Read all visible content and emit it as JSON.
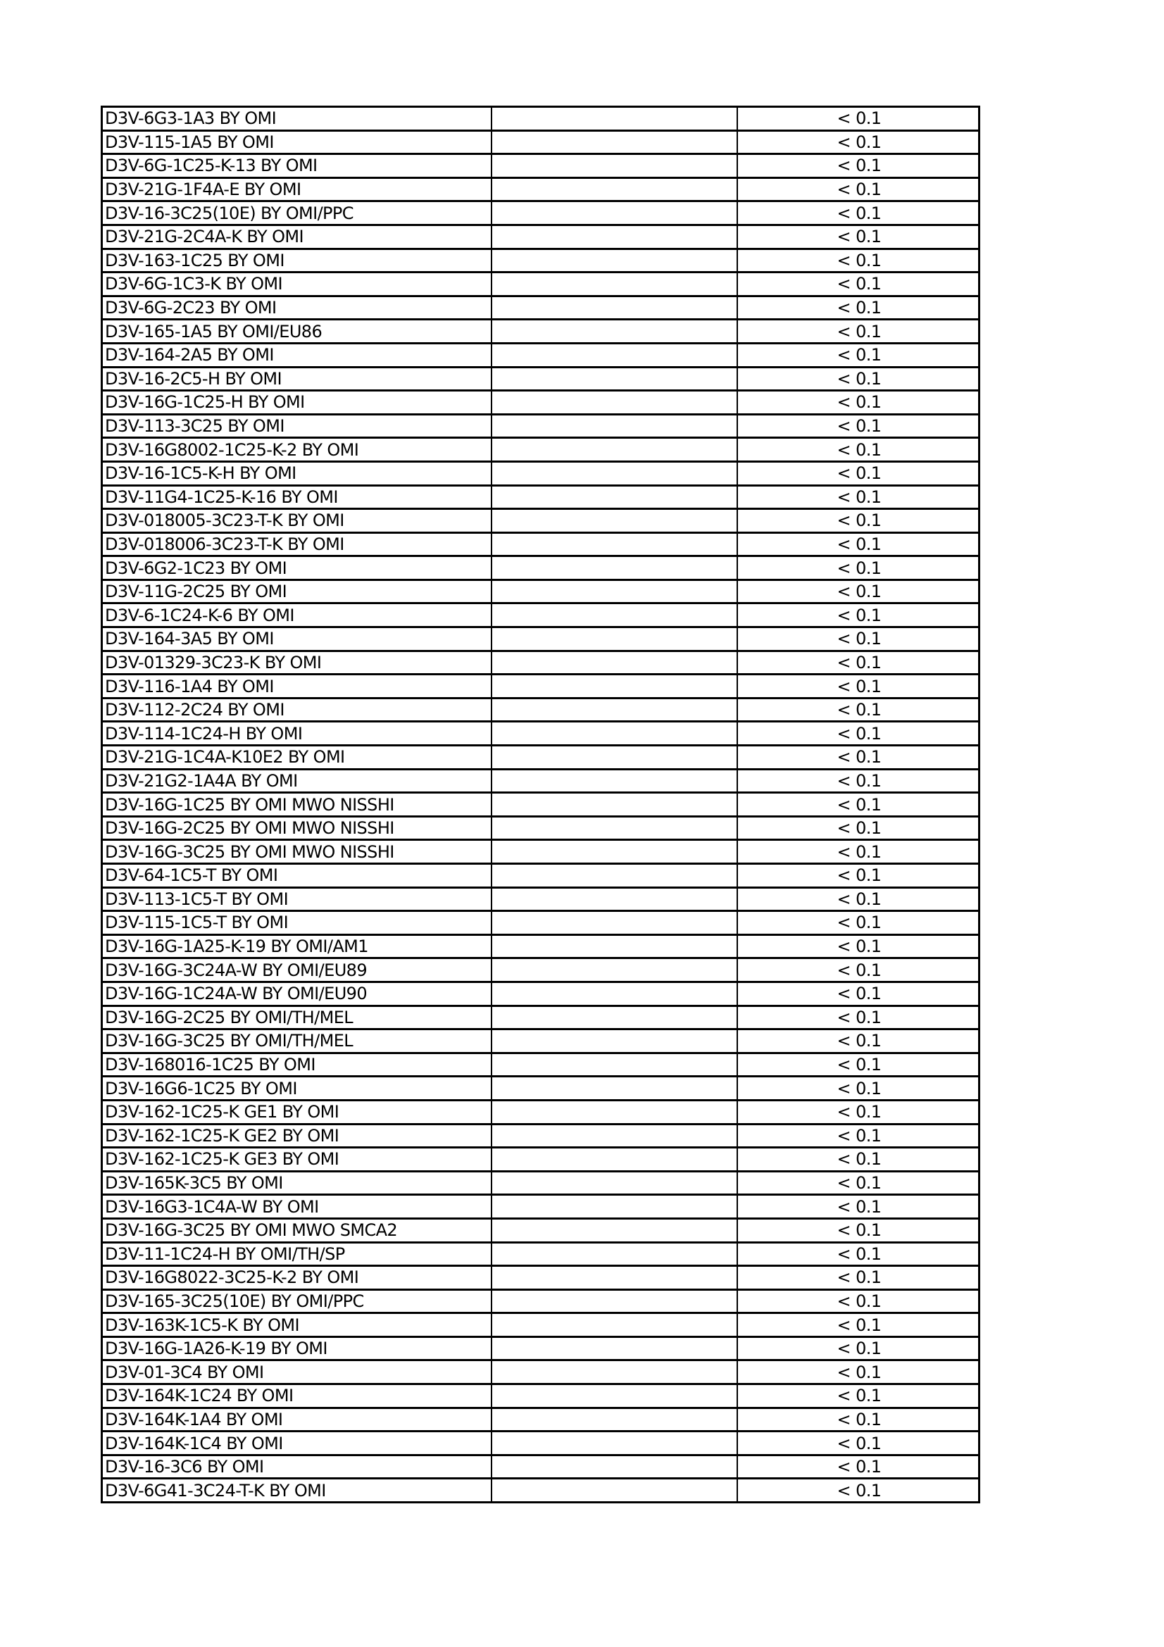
{
  "rows": [
    {
      "name": "D3V-6G3-1A3 BY OMI",
      "col2": "",
      "value": "< 0.1"
    },
    {
      "name": "D3V-115-1A5 BY OMI",
      "col2": "",
      "value": "< 0.1"
    },
    {
      "name": "D3V-6G-1C25-K-13 BY OMI",
      "col2": "",
      "value": "< 0.1"
    },
    {
      "name": "D3V-21G-1F4A-E BY OMI",
      "col2": "",
      "value": "< 0.1"
    },
    {
      "name": "D3V-16-3C25(10E) BY OMI/PPC",
      "col2": "",
      "value": "< 0.1"
    },
    {
      "name": "D3V-21G-2C4A-K BY OMI",
      "col2": "",
      "value": "< 0.1"
    },
    {
      "name": "D3V-163-1C25 BY OMI",
      "col2": "",
      "value": "< 0.1"
    },
    {
      "name": "D3V-6G-1C3-K BY OMI",
      "col2": "",
      "value": "< 0.1"
    },
    {
      "name": "D3V-6G-2C23 BY OMI",
      "col2": "",
      "value": "< 0.1"
    },
    {
      "name": "D3V-165-1A5 BY OMI/EU86",
      "col2": "",
      "value": "< 0.1"
    },
    {
      "name": "D3V-164-2A5 BY OMI",
      "col2": "",
      "value": "< 0.1"
    },
    {
      "name": "D3V-16-2C5-H BY OMI",
      "col2": "",
      "value": "< 0.1"
    },
    {
      "name": "D3V-16G-1C25-H BY OMI",
      "col2": "",
      "value": "< 0.1"
    },
    {
      "name": "D3V-113-3C25 BY OMI",
      "col2": "",
      "value": "< 0.1"
    },
    {
      "name": "D3V-16G8002-1C25-K-2 BY OMI",
      "col2": "",
      "value": "< 0.1"
    },
    {
      "name": "D3V-16-1C5-K-H BY OMI",
      "col2": "",
      "value": "< 0.1"
    },
    {
      "name": "D3V-11G4-1C25-K-16 BY OMI",
      "col2": "",
      "value": "< 0.1"
    },
    {
      "name": "D3V-018005-3C23-T-K BY OMI",
      "col2": "",
      "value": "< 0.1"
    },
    {
      "name": "D3V-018006-3C23-T-K BY OMI",
      "col2": "",
      "value": "< 0.1"
    },
    {
      "name": "D3V-6G2-1C23 BY OMI",
      "col2": "",
      "value": "< 0.1"
    },
    {
      "name": "D3V-11G-2C25 BY OMI",
      "col2": "",
      "value": "< 0.1"
    },
    {
      "name": "D3V-6-1C24-K-6 BY OMI",
      "col2": "",
      "value": "< 0.1"
    },
    {
      "name": "D3V-164-3A5 BY OMI",
      "col2": "",
      "value": "< 0.1"
    },
    {
      "name": "D3V-01329-3C23-K BY OMI",
      "col2": "",
      "value": "< 0.1"
    },
    {
      "name": "D3V-116-1A4 BY OMI",
      "col2": "",
      "value": "< 0.1"
    },
    {
      "name": "D3V-112-2C24 BY OMI",
      "col2": "",
      "value": "< 0.1"
    },
    {
      "name": "D3V-114-1C24-H BY OMI",
      "col2": "",
      "value": "< 0.1"
    },
    {
      "name": "D3V-21G-1C4A-K10E2 BY OMI",
      "col2": "",
      "value": "< 0.1"
    },
    {
      "name": "D3V-21G2-1A4A BY OMI",
      "col2": "",
      "value": "< 0.1"
    },
    {
      "name": "D3V-16G-1C25 BY OMI MWO NISSHI",
      "col2": "",
      "value": "< 0.1"
    },
    {
      "name": "D3V-16G-2C25 BY OMI MWO NISSHI",
      "col2": "",
      "value": "< 0.1"
    },
    {
      "name": "D3V-16G-3C25 BY OMI MWO NISSHI",
      "col2": "",
      "value": "< 0.1"
    },
    {
      "name": "D3V-64-1C5-T BY OMI",
      "col2": "",
      "value": "< 0.1"
    },
    {
      "name": "D3V-113-1C5-T BY OMI",
      "col2": "",
      "value": "< 0.1"
    },
    {
      "name": "D3V-115-1C5-T BY OMI",
      "col2": "",
      "value": "< 0.1"
    },
    {
      "name": "D3V-16G-1A25-K-19 BY OMI/AM1",
      "col2": "",
      "value": "< 0.1"
    },
    {
      "name": "D3V-16G-3C24A-W BY OMI/EU89",
      "col2": "",
      "value": "< 0.1"
    },
    {
      "name": "D3V-16G-1C24A-W BY OMI/EU90",
      "col2": "",
      "value": "< 0.1"
    },
    {
      "name": "D3V-16G-2C25 BY OMI/TH/MEL",
      "col2": "",
      "value": "< 0.1"
    },
    {
      "name": "D3V-16G-3C25 BY OMI/TH/MEL",
      "col2": "",
      "value": "< 0.1"
    },
    {
      "name": "D3V-168016-1C25 BY OMI",
      "col2": "",
      "value": "< 0.1"
    },
    {
      "name": "D3V-16G6-1C25 BY OMI",
      "col2": "",
      "value": "< 0.1"
    },
    {
      "name": "D3V-162-1C25-K GE1 BY OMI",
      "col2": "",
      "value": "< 0.1"
    },
    {
      "name": "D3V-162-1C25-K GE2 BY OMI",
      "col2": "",
      "value": "< 0.1"
    },
    {
      "name": "D3V-162-1C25-K GE3 BY OMI",
      "col2": "",
      "value": "< 0.1"
    },
    {
      "name": "D3V-165K-3C5 BY OMI",
      "col2": "",
      "value": "< 0.1"
    },
    {
      "name": "D3V-16G3-1C4A-W BY OMI",
      "col2": "",
      "value": "< 0.1"
    },
    {
      "name": "D3V-16G-3C25 BY OMI MWO SMCA2",
      "col2": "",
      "value": "< 0.1"
    },
    {
      "name": "D3V-11-1C24-H BY OMI/TH/SP",
      "col2": "",
      "value": "< 0.1"
    },
    {
      "name": "D3V-16G8022-3C25-K-2 BY OMI",
      "col2": "",
      "value": "< 0.1"
    },
    {
      "name": "D3V-165-3C25(10E) BY OMI/PPC",
      "col2": "",
      "value": "< 0.1"
    },
    {
      "name": "D3V-163K-1C5-K BY OMI",
      "col2": "",
      "value": "< 0.1"
    },
    {
      "name": "D3V-16G-1A26-K-19 BY OMI",
      "col2": "",
      "value": "< 0.1"
    },
    {
      "name": "D3V-01-3C4 BY OMI",
      "col2": "",
      "value": "< 0.1"
    },
    {
      "name": "D3V-164K-1C24 BY OMI",
      "col2": "",
      "value": "< 0.1"
    },
    {
      "name": "D3V-164K-1A4 BY OMI",
      "col2": "",
      "value": "< 0.1"
    },
    {
      "name": "D3V-164K-1C4 BY OMI",
      "col2": "",
      "value": "< 0.1"
    },
    {
      "name": "D3V-16-3C6 BY OMI",
      "col2": "",
      "value": "< 0.1"
    },
    {
      "name": "D3V-6G41-3C24-T-K BY OMI",
      "col2": "",
      "value": "< 0.1"
    }
  ]
}
